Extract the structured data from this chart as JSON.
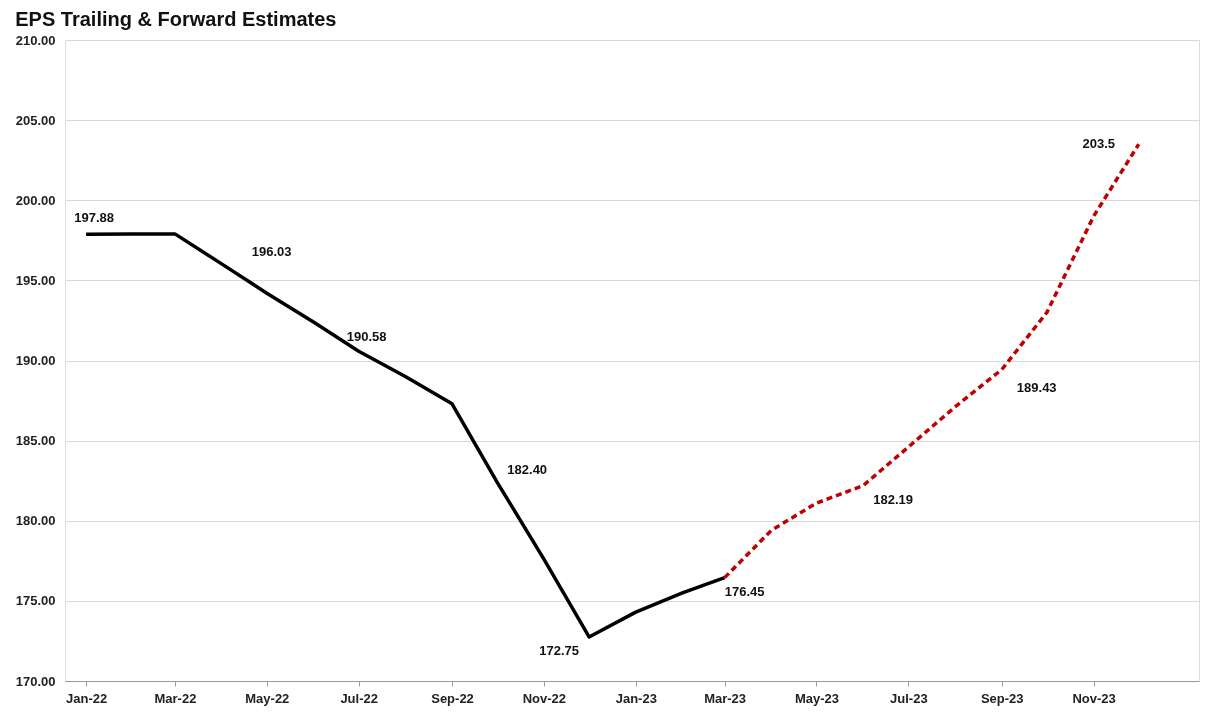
{
  "chart_data": {
    "type": "line",
    "title": "EPS Trailing & Forward Estimates",
    "series": [
      {
        "color": "#000000",
        "line_style": "solid",
        "x": [
          "2022-01",
          "2022-02",
          "2022-03",
          "2022-04",
          "2022-05",
          "2022-06",
          "2022-07",
          "2022-08",
          "2022-09",
          "2022-10",
          "2022-11",
          "2022-12",
          "2023-01",
          "2023-02",
          "2023-03"
        ],
        "values": [
          197.88,
          197.9,
          197.9,
          196.03,
          194.2,
          192.4,
          190.58,
          189.0,
          187.3,
          182.4,
          177.6,
          172.75,
          174.3,
          175.5,
          176.45
        ]
      },
      {
        "color": "#c00000",
        "line_style": "dashed",
        "x": [
          "2023-03",
          "2023-04",
          "2023-05",
          "2023-06",
          "2023-07",
          "2023-08",
          "2023-09",
          "2023-10",
          "2023-11",
          "2023-12"
        ],
        "values": [
          176.45,
          179.4,
          181.1,
          182.19,
          184.6,
          187.1,
          189.43,
          193.0,
          199.0,
          203.5
        ]
      }
    ],
    "annotations": [
      {
        "text": "197.88",
        "x": "2022-01",
        "y": 197.88
      },
      {
        "text": "196.03",
        "x": "2022-04",
        "y": 196.03
      },
      {
        "text": "190.58",
        "x": "2022-07",
        "y": 190.58
      },
      {
        "text": "182.40",
        "x": "2022-10",
        "y": 182.4
      },
      {
        "text": "172.75",
        "x": "2022-12",
        "y": 172.75
      },
      {
        "text": "176.45",
        "x": "2023-03",
        "y": 176.45
      },
      {
        "text": "182.19",
        "x": "2023-06",
        "y": 182.19
      },
      {
        "text": "189.43",
        "x": "2023-09",
        "y": 189.43
      },
      {
        "text": "203.5",
        "x": "2023-12",
        "y": 203.5
      }
    ],
    "xlim": [
      "2021-12-18",
      "2024-01-10"
    ],
    "xticks": [
      {
        "value": "2022-01",
        "label": "Jan-22"
      },
      {
        "value": "2022-03",
        "label": "Mar-22"
      },
      {
        "value": "2022-05",
        "label": "May-22"
      },
      {
        "value": "2022-07",
        "label": "Jul-22"
      },
      {
        "value": "2022-09",
        "label": "Sep-22"
      },
      {
        "value": "2022-11",
        "label": "Nov-22"
      },
      {
        "value": "2023-01",
        "label": "Jan-23"
      },
      {
        "value": "2023-03",
        "label": "Mar-23"
      },
      {
        "value": "2023-05",
        "label": "May-23"
      },
      {
        "value": "2023-07",
        "label": "Jul-23"
      },
      {
        "value": "2023-09",
        "label": "Sep-23"
      },
      {
        "value": "2023-11",
        "label": "Nov-23"
      }
    ],
    "ylim": [
      170,
      210
    ],
    "yticks": [
      {
        "value": 170,
        "label": "170.00"
      },
      {
        "value": 175,
        "label": "175.00"
      },
      {
        "value": 180,
        "label": "180.00"
      },
      {
        "value": 185,
        "label": "185.00"
      },
      {
        "value": 190,
        "label": "190.00"
      },
      {
        "value": 195,
        "label": "195.00"
      },
      {
        "value": 200,
        "label": "200.00"
      },
      {
        "value": 205,
        "label": "205.00"
      },
      {
        "value": 210,
        "label": "210.00"
      }
    ],
    "grid": "y"
  }
}
